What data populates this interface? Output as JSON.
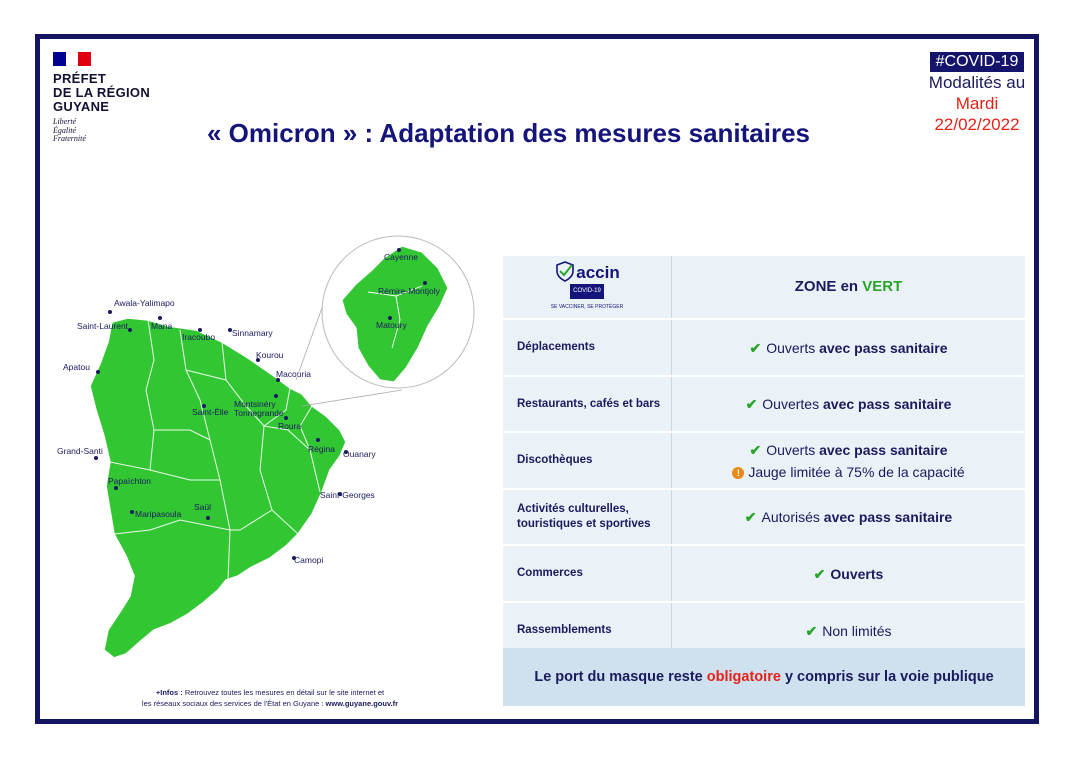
{
  "logo": {
    "line1": "PRÉFET",
    "line2": "DE LA RÉGION",
    "line3": "GUYANE",
    "motto1": "Liberté",
    "motto2": "Égalité",
    "motto3": "Fraternité",
    "colors": [
      "#000091",
      "#ffffff",
      "#e1000f"
    ]
  },
  "title": {
    "part1": "«  Omicron  » : Adaptation des mesures sanitaires"
  },
  "covid": {
    "tag": "#COVID-19",
    "line1": "Modalités au",
    "line2": "Mardi",
    "line3": "22/02/2022"
  },
  "map": {
    "fill": "#33c633",
    "towns": [
      "Awala-Yalimapo",
      "Saint-Laurent",
      "Mana",
      "Iracoubo",
      "Sinnamary",
      "Kourou",
      "Macouria",
      "Apatou",
      "Saint-Élie",
      "Montsinéry",
      "Tonnegrande",
      "Roura",
      "Grand-Santi",
      "Régina",
      "Ouanary",
      "Papaïchton",
      "Saint-Georges",
      "Maripasoula",
      "Saül",
      "Camopi"
    ],
    "inset_towns": [
      "Cayenne",
      "Rémire-Montjoly",
      "Matoury"
    ]
  },
  "infos": {
    "bold": "+Infos :",
    "text1": " Retrouvez toutes les mesures en détail sur le site internet et",
    "text2": "les réseaux sociaux des services de l'État en Guyane : ",
    "url": "www.guyane.gouv.fr"
  },
  "table": {
    "header": {
      "vaccin": "accin",
      "vaccin_tag": "COVID-19",
      "vaccin_sub": "SE VACCINER, SE PROTÉGER",
      "zone": "ZONE en ",
      "zone_color": "VERT"
    },
    "rows": [
      {
        "label": "Déplacements",
        "pre": "Ouverts ",
        "bold": "avec pass sanitaire"
      },
      {
        "label": "Restaurants, cafés et bars",
        "pre": "Ouvertes ",
        "bold": "avec pass sanitaire"
      },
      {
        "label": "Discothèques",
        "pre": "Ouverts ",
        "bold": "avec pass sanitaire",
        "note": "Jauge limitée à 75% de la capacité"
      },
      {
        "label": "Activités culturelles, touristiques et sportives",
        "pre": "Autorisés ",
        "bold": "avec pass sanitaire"
      },
      {
        "label": "Commerces",
        "bold": "Ouverts"
      },
      {
        "label": "Rassemblements",
        "pre": "Non limités"
      }
    ]
  },
  "footer": {
    "part1": "Le port du masque reste ",
    "part2": "obligatoire",
    "part3": " y compris sur la voie publique"
  }
}
